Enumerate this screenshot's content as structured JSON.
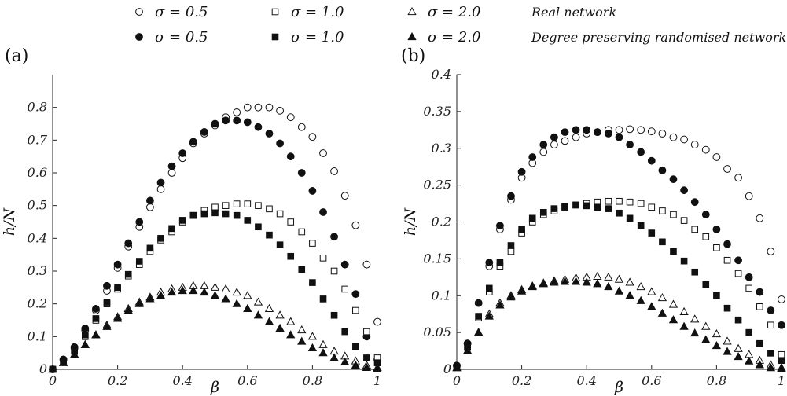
{
  "legend": {
    "rows": [
      {
        "filled": false,
        "description": "Real network",
        "items": [
          {
            "marker": "circle",
            "label": "σ = 0.5"
          },
          {
            "marker": "square",
            "label": "σ = 1.0"
          },
          {
            "marker": "triangle",
            "label": "σ = 2.0"
          }
        ]
      },
      {
        "filled": true,
        "description": "Degree preserving randomised network",
        "items": [
          {
            "marker": "circle",
            "label": "σ = 0.5"
          },
          {
            "marker": "square",
            "label": "σ = 1.0"
          },
          {
            "marker": "triangle",
            "label": "σ = 2.0"
          }
        ]
      }
    ]
  },
  "chart_data": [
    {
      "panel": "(a)",
      "type": "scatter",
      "xlabel": "β",
      "ylabel": "h/N",
      "xlim": [
        0,
        1
      ],
      "ylim": [
        0,
        0.9
      ],
      "xticks": [
        "0",
        "0.2",
        "0.4",
        "0.6",
        "0.8",
        "1"
      ],
      "yticks": [
        "0",
        "0.1",
        "0.2",
        "0.3",
        "0.4",
        "0.5",
        "0.6",
        "0.7",
        "0.8"
      ],
      "x": [
        0.0,
        0.033,
        0.067,
        0.1,
        0.133,
        0.167,
        0.2,
        0.233,
        0.267,
        0.3,
        0.333,
        0.367,
        0.4,
        0.433,
        0.467,
        0.5,
        0.533,
        0.567,
        0.6,
        0.633,
        0.667,
        0.7,
        0.733,
        0.767,
        0.8,
        0.833,
        0.867,
        0.9,
        0.933,
        0.967,
        1.0
      ],
      "series": [
        {
          "marker": "circle",
          "filled": false,
          "values": [
            0.0,
            0.03,
            0.065,
            0.12,
            0.18,
            0.24,
            0.31,
            0.375,
            0.435,
            0.495,
            0.55,
            0.6,
            0.645,
            0.69,
            0.72,
            0.745,
            0.77,
            0.785,
            0.8,
            0.8,
            0.8,
            0.79,
            0.77,
            0.74,
            0.71,
            0.66,
            0.605,
            0.53,
            0.44,
            0.32,
            0.145
          ]
        },
        {
          "marker": "circle",
          "filled": true,
          "values": [
            0.0,
            0.03,
            0.068,
            0.125,
            0.185,
            0.255,
            0.32,
            0.385,
            0.45,
            0.515,
            0.57,
            0.62,
            0.66,
            0.695,
            0.725,
            0.75,
            0.76,
            0.76,
            0.755,
            0.74,
            0.72,
            0.69,
            0.65,
            0.6,
            0.545,
            0.48,
            0.405,
            0.32,
            0.23,
            0.1,
            0.03
          ]
        },
        {
          "marker": "square",
          "filled": false,
          "values": [
            0.0,
            0.025,
            0.055,
            0.1,
            0.15,
            0.2,
            0.245,
            0.285,
            0.32,
            0.36,
            0.395,
            0.42,
            0.45,
            0.47,
            0.485,
            0.495,
            0.5,
            0.505,
            0.505,
            0.5,
            0.49,
            0.475,
            0.45,
            0.42,
            0.385,
            0.34,
            0.3,
            0.245,
            0.18,
            0.115,
            0.035
          ]
        },
        {
          "marker": "square",
          "filled": true,
          "values": [
            0.0,
            0.025,
            0.058,
            0.105,
            0.155,
            0.205,
            0.25,
            0.29,
            0.33,
            0.37,
            0.4,
            0.43,
            0.455,
            0.47,
            0.475,
            0.478,
            0.475,
            0.47,
            0.455,
            0.435,
            0.41,
            0.38,
            0.345,
            0.305,
            0.265,
            0.215,
            0.165,
            0.115,
            0.07,
            0.035,
            0.02
          ]
        },
        {
          "marker": "triangle",
          "filled": false,
          "values": [
            0.0,
            0.02,
            0.045,
            0.075,
            0.105,
            0.135,
            0.16,
            0.185,
            0.205,
            0.22,
            0.235,
            0.245,
            0.25,
            0.255,
            0.255,
            0.25,
            0.245,
            0.235,
            0.225,
            0.205,
            0.185,
            0.165,
            0.145,
            0.12,
            0.1,
            0.075,
            0.055,
            0.04,
            0.025,
            0.012,
            0.005
          ]
        },
        {
          "marker": "triangle",
          "filled": true,
          "values": [
            0.0,
            0.02,
            0.045,
            0.075,
            0.105,
            0.13,
            0.155,
            0.18,
            0.2,
            0.215,
            0.225,
            0.235,
            0.24,
            0.24,
            0.235,
            0.225,
            0.215,
            0.2,
            0.185,
            0.165,
            0.145,
            0.125,
            0.105,
            0.085,
            0.065,
            0.05,
            0.035,
            0.022,
            0.012,
            0.005,
            0.001
          ]
        }
      ]
    },
    {
      "panel": "(b)",
      "type": "scatter",
      "xlabel": "β",
      "ylabel": "h/N",
      "xlim": [
        0,
        1
      ],
      "ylim": [
        0,
        0.4
      ],
      "xticks": [
        "0",
        "0.2",
        "0.4",
        "0.6",
        "0.8",
        "1"
      ],
      "yticks": [
        "0",
        "0.05",
        "0.1",
        "0.15",
        "0.2",
        "0.25",
        "0.3",
        "0.35",
        "0.4"
      ],
      "x": [
        0.0,
        0.033,
        0.067,
        0.1,
        0.133,
        0.167,
        0.2,
        0.233,
        0.267,
        0.3,
        0.333,
        0.367,
        0.4,
        0.433,
        0.467,
        0.5,
        0.533,
        0.567,
        0.6,
        0.633,
        0.667,
        0.7,
        0.733,
        0.767,
        0.8,
        0.833,
        0.867,
        0.9,
        0.933,
        0.967,
        1.0
      ],
      "series": [
        {
          "marker": "circle",
          "filled": false,
          "values": [
            0.005,
            0.035,
            0.09,
            0.14,
            0.19,
            0.23,
            0.26,
            0.28,
            0.295,
            0.305,
            0.31,
            0.315,
            0.32,
            0.322,
            0.325,
            0.325,
            0.326,
            0.325,
            0.323,
            0.32,
            0.315,
            0.312,
            0.305,
            0.298,
            0.288,
            0.272,
            0.26,
            0.235,
            0.205,
            0.16,
            0.095
          ]
        },
        {
          "marker": "circle",
          "filled": true,
          "values": [
            0.005,
            0.035,
            0.09,
            0.145,
            0.195,
            0.235,
            0.268,
            0.288,
            0.305,
            0.315,
            0.322,
            0.325,
            0.325,
            0.322,
            0.32,
            0.315,
            0.305,
            0.295,
            0.283,
            0.27,
            0.258,
            0.243,
            0.227,
            0.21,
            0.19,
            0.17,
            0.148,
            0.125,
            0.105,
            0.08,
            0.06
          ]
        },
        {
          "marker": "square",
          "filled": false,
          "values": [
            0.003,
            0.03,
            0.07,
            0.105,
            0.14,
            0.16,
            0.185,
            0.2,
            0.21,
            0.215,
            0.22,
            0.223,
            0.225,
            0.227,
            0.228,
            0.228,
            0.227,
            0.225,
            0.22,
            0.215,
            0.21,
            0.202,
            0.19,
            0.18,
            0.165,
            0.148,
            0.13,
            0.11,
            0.085,
            0.06,
            0.02
          ]
        },
        {
          "marker": "square",
          "filled": true,
          "values": [
            0.003,
            0.03,
            0.072,
            0.11,
            0.145,
            0.168,
            0.19,
            0.205,
            0.213,
            0.218,
            0.221,
            0.223,
            0.222,
            0.22,
            0.218,
            0.212,
            0.205,
            0.195,
            0.185,
            0.173,
            0.16,
            0.147,
            0.132,
            0.115,
            0.1,
            0.083,
            0.067,
            0.05,
            0.035,
            0.022,
            0.012
          ]
        },
        {
          "marker": "triangle",
          "filled": false,
          "values": [
            0.002,
            0.025,
            0.05,
            0.075,
            0.09,
            0.1,
            0.108,
            0.113,
            0.117,
            0.12,
            0.122,
            0.124,
            0.125,
            0.126,
            0.125,
            0.122,
            0.118,
            0.112,
            0.105,
            0.097,
            0.088,
            0.078,
            0.068,
            0.058,
            0.048,
            0.038,
            0.028,
            0.02,
            0.012,
            0.006,
            0.002
          ]
        },
        {
          "marker": "triangle",
          "filled": true,
          "values": [
            0.002,
            0.025,
            0.05,
            0.072,
            0.087,
            0.098,
            0.106,
            0.112,
            0.116,
            0.118,
            0.119,
            0.119,
            0.118,
            0.116,
            0.112,
            0.106,
            0.1,
            0.093,
            0.085,
            0.076,
            0.067,
            0.058,
            0.049,
            0.04,
            0.032,
            0.024,
            0.017,
            0.011,
            0.006,
            0.002,
            0.001
          ]
        }
      ]
    }
  ]
}
